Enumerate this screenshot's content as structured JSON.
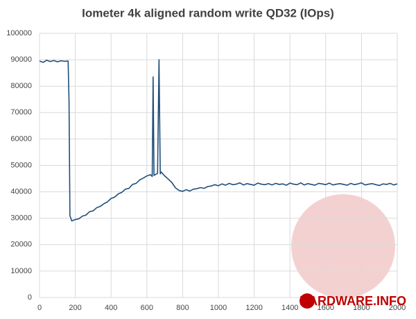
{
  "chart_data": {
    "type": "line",
    "title": "Iometer 4k aligned random write QD32 (IOps)",
    "x": [
      0,
      20,
      40,
      60,
      80,
      100,
      120,
      140,
      160,
      165,
      170,
      180,
      200,
      220,
      240,
      260,
      280,
      300,
      320,
      340,
      360,
      380,
      400,
      420,
      440,
      460,
      480,
      500,
      520,
      540,
      560,
      580,
      600,
      620,
      630,
      635,
      640,
      660,
      668,
      675,
      680,
      700,
      720,
      740,
      760,
      780,
      800,
      820,
      840,
      860,
      880,
      900,
      920,
      940,
      960,
      980,
      1000,
      1020,
      1040,
      1060,
      1080,
      1100,
      1120,
      1140,
      1160,
      1180,
      1200,
      1220,
      1240,
      1260,
      1280,
      1300,
      1320,
      1340,
      1360,
      1380,
      1400,
      1420,
      1440,
      1460,
      1480,
      1500,
      1520,
      1540,
      1560,
      1580,
      1600,
      1620,
      1640,
      1660,
      1680,
      1700,
      1720,
      1740,
      1760,
      1780,
      1800,
      1820,
      1840,
      1860,
      1880,
      1900,
      1920,
      1940,
      1960,
      1980,
      2000
    ],
    "values": [
      89500,
      89000,
      89800,
      89300,
      89700,
      89200,
      89600,
      89400,
      89500,
      74000,
      31000,
      29000,
      29500,
      29800,
      30800,
      31200,
      32500,
      32800,
      34000,
      34500,
      35500,
      36200,
      37500,
      38000,
      39200,
      39800,
      41000,
      41300,
      42800,
      43200,
      44500,
      45200,
      46000,
      46500,
      45800,
      83500,
      46200,
      47000,
      90000,
      46800,
      47500,
      46000,
      44800,
      43500,
      41500,
      40500,
      40200,
      40800,
      40300,
      41000,
      41200,
      41600,
      41300,
      42000,
      42200,
      42700,
      42300,
      43000,
      42500,
      43200,
      42700,
      42900,
      43400,
      42600,
      43100,
      42800,
      42500,
      43300,
      42900,
      42700,
      43100,
      42600,
      43200,
      42800,
      43000,
      42500,
      43300,
      42900,
      42700,
      43400,
      42600,
      43100,
      42800,
      42500,
      43200,
      43000,
      42700,
      43300,
      42600,
      42900,
      43100,
      42800,
      42500,
      43200,
      42700,
      43000,
      43400,
      42600,
      42900,
      43100,
      42700,
      42400,
      43000,
      42800,
      43200,
      42600,
      43000
    ],
    "color": "#1f4e79",
    "xlim": [
      0,
      2000
    ],
    "xticks": [
      0,
      200,
      400,
      600,
      800,
      1000,
      1200,
      1400,
      1600,
      1800,
      2000
    ],
    "ylim": [
      0,
      100000
    ],
    "yticks": [
      0,
      10000,
      20000,
      30000,
      40000,
      50000,
      60000,
      70000,
      80000,
      90000,
      100000
    ],
    "grid": true,
    "watermark": "HARDWARE.INFO"
  }
}
